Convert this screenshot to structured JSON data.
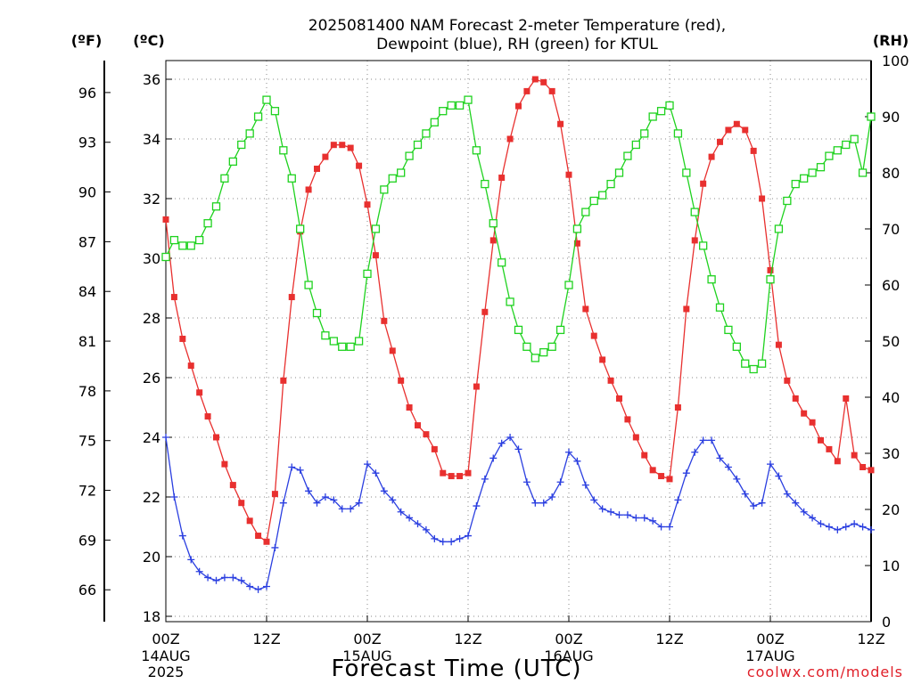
{
  "chart_data": {
    "type": "line",
    "title_line1": "2025081400 NAM Forecast 2-meter Temperature (red),",
    "title_line2": "Dewpoint (blue), RH (green) for KTUL",
    "xlabel": "Forecast Time (UTC)",
    "credit": "coolwx.com/models",
    "units": {
      "left_f": "(ºF)",
      "left_c": "(ºC)",
      "right": "(RH)"
    },
    "xlim": [
      0,
      84
    ],
    "ylim_c": [
      18,
      36.5
    ],
    "ylim_rh": [
      0,
      100
    ],
    "grid": true,
    "x_ticks": [
      {
        "x": 0,
        "label": "00Z",
        "date": "14AUG",
        "year": "2025"
      },
      {
        "x": 12,
        "label": "12Z",
        "date": "",
        "year": ""
      },
      {
        "x": 24,
        "label": "00Z",
        "date": "15AUG",
        "year": ""
      },
      {
        "x": 36,
        "label": "12Z",
        "date": "",
        "year": ""
      },
      {
        "x": 48,
        "label": "00Z",
        "date": "16AUG",
        "year": ""
      },
      {
        "x": 60,
        "label": "12Z",
        "date": "",
        "year": ""
      },
      {
        "x": 72,
        "label": "00Z",
        "date": "17AUG",
        "year": ""
      },
      {
        "x": 84,
        "label": "12Z",
        "date": "",
        "year": ""
      }
    ],
    "c_ticks": [
      18,
      20,
      22,
      24,
      26,
      28,
      30,
      32,
      34,
      36
    ],
    "f_ticks": [
      66,
      69,
      72,
      75,
      78,
      81,
      84,
      87,
      90,
      93,
      96
    ],
    "rh_ticks": [
      0,
      10,
      20,
      30,
      40,
      50,
      60,
      70,
      80,
      90,
      100
    ],
    "series": [
      {
        "color": "#e8302f",
        "unit": "C",
        "marker": "square-filled",
        "x": [
          0,
          1,
          2,
          3,
          4,
          5,
          6,
          7,
          8,
          9,
          10,
          11,
          12,
          13,
          14,
          15,
          16,
          17,
          18,
          19,
          20,
          21,
          22,
          23,
          24,
          25,
          26,
          27,
          28,
          29,
          30,
          31,
          32,
          33,
          34,
          35,
          36,
          37,
          38,
          39,
          40,
          41,
          42,
          43,
          44,
          45,
          46,
          47,
          48,
          49,
          50,
          51,
          52,
          53,
          54,
          55,
          56,
          57,
          58,
          59,
          60,
          61,
          62,
          63,
          64,
          65,
          66,
          67,
          68,
          69,
          70,
          71,
          72,
          73,
          74,
          75,
          76,
          77,
          78,
          79,
          80,
          81,
          82,
          83,
          84
        ],
        "y": [
          31.3,
          28.7,
          27.3,
          26.4,
          25.5,
          24.7,
          24.0,
          23.1,
          22.4,
          21.8,
          21.2,
          20.7,
          20.5,
          22.1,
          25.9,
          28.7,
          30.9,
          32.3,
          33.0,
          33.4,
          33.8,
          33.8,
          33.7,
          33.1,
          31.8,
          30.1,
          27.9,
          26.9,
          25.9,
          25.0,
          24.4,
          24.1,
          23.6,
          22.8,
          22.7,
          22.7,
          22.8,
          25.7,
          28.2,
          30.6,
          32.7,
          34.0,
          35.1,
          35.6,
          36.0,
          35.9,
          35.6,
          34.5,
          32.8,
          30.5,
          28.3,
          27.4,
          26.6,
          25.9,
          25.3,
          24.6,
          24.0,
          23.4,
          22.9,
          22.7,
          22.6,
          25.0,
          28.3,
          30.6,
          32.5,
          33.4,
          33.9,
          34.3,
          34.5,
          34.3,
          33.6,
          32.0,
          29.6,
          27.1,
          25.9,
          25.3,
          24.8,
          24.5,
          23.9,
          23.6,
          23.2,
          25.3,
          23.4,
          23.0,
          22.9
        ]
      },
      {
        "color": "#2b3fe0",
        "unit": "C",
        "marker": "plus",
        "x": [
          0,
          1,
          2,
          3,
          4,
          5,
          6,
          7,
          8,
          9,
          10,
          11,
          12,
          13,
          14,
          15,
          16,
          17,
          18,
          19,
          20,
          21,
          22,
          23,
          24,
          25,
          26,
          27,
          28,
          29,
          30,
          31,
          32,
          33,
          34,
          35,
          36,
          37,
          38,
          39,
          40,
          41,
          42,
          43,
          44,
          45,
          46,
          47,
          48,
          49,
          50,
          51,
          52,
          53,
          54,
          55,
          56,
          57,
          58,
          59,
          60,
          61,
          62,
          63,
          64,
          65,
          66,
          67,
          68,
          69,
          70,
          71,
          72,
          73,
          74,
          75,
          76,
          77,
          78,
          79,
          80,
          81,
          82,
          83,
          84
        ],
        "y": [
          24.0,
          22.0,
          20.7,
          19.9,
          19.5,
          19.3,
          19.2,
          19.3,
          19.3,
          19.2,
          19.0,
          18.9,
          19.0,
          20.3,
          21.8,
          23.0,
          22.9,
          22.2,
          21.8,
          22.0,
          21.9,
          21.6,
          21.6,
          21.8,
          23.1,
          22.8,
          22.2,
          21.9,
          21.5,
          21.3,
          21.1,
          20.9,
          20.6,
          20.5,
          20.5,
          20.6,
          20.7,
          21.7,
          22.6,
          23.3,
          23.8,
          24.0,
          23.6,
          22.5,
          21.8,
          21.8,
          22.0,
          22.5,
          23.5,
          23.2,
          22.4,
          21.9,
          21.6,
          21.5,
          21.4,
          21.4,
          21.3,
          21.3,
          21.2,
          21.0,
          21.0,
          21.9,
          22.8,
          23.5,
          23.9,
          23.9,
          23.3,
          23.0,
          22.6,
          22.1,
          21.7,
          21.8,
          23.1,
          22.7,
          22.1,
          21.8,
          21.5,
          21.3,
          21.1,
          21.0,
          20.9,
          21.0,
          21.1,
          21.0,
          20.9
        ]
      },
      {
        "color": "#1fd21f",
        "unit": "RH",
        "marker": "square-open",
        "x": [
          0,
          1,
          2,
          3,
          4,
          5,
          6,
          7,
          8,
          9,
          10,
          11,
          12,
          13,
          14,
          15,
          16,
          17,
          18,
          19,
          20,
          21,
          22,
          23,
          24,
          25,
          26,
          27,
          28,
          29,
          30,
          31,
          32,
          33,
          34,
          35,
          36,
          37,
          38,
          39,
          40,
          41,
          42,
          43,
          44,
          45,
          46,
          47,
          48,
          49,
          50,
          51,
          52,
          53,
          54,
          55,
          56,
          57,
          58,
          59,
          60,
          61,
          62,
          63,
          64,
          65,
          66,
          67,
          68,
          69,
          70,
          71,
          72,
          73,
          74,
          75,
          76,
          77,
          78,
          79,
          80,
          81,
          82,
          83,
          84
        ],
        "y": [
          65,
          68,
          67,
          67,
          68,
          71,
          74,
          79,
          82,
          85,
          87,
          90,
          93,
          91,
          84,
          79,
          70,
          60,
          55,
          51,
          50,
          49,
          49,
          50,
          62,
          70,
          77,
          79,
          80,
          83,
          85,
          87,
          89,
          91,
          92,
          92,
          93,
          84,
          78,
          71,
          64,
          57,
          52,
          49,
          47,
          48,
          49,
          52,
          60,
          70,
          73,
          75,
          76,
          78,
          80,
          83,
          85,
          87,
          90,
          91,
          92,
          87,
          80,
          73,
          67,
          61,
          56,
          52,
          49,
          46,
          45,
          46,
          61,
          70,
          75,
          78,
          79,
          80,
          81,
          83,
          84,
          85,
          86,
          80,
          90
        ]
      }
    ]
  }
}
